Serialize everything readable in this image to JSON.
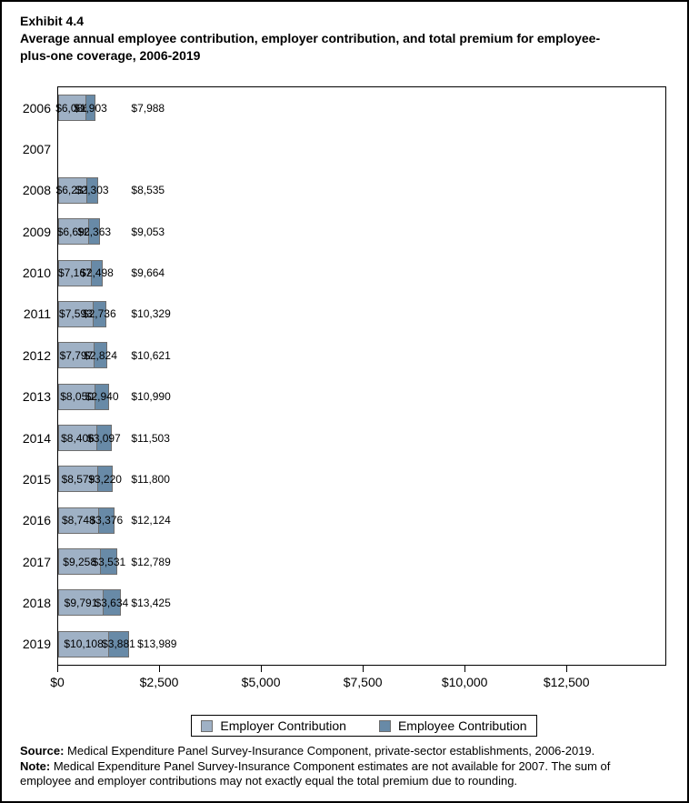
{
  "header": {
    "exhibit": "Exhibit 4.4",
    "title": "Average annual employee contribution, employer contribution, and total premium for employee-plus-one coverage, 2006-2019"
  },
  "colors": {
    "employer": "#9fb1c5",
    "employee": "#688aa7",
    "bar_border": "#6e6e6e"
  },
  "chart_data": {
    "type": "bar",
    "subtype": "horizontal-stacked",
    "title": "Average annual employee contribution, employer contribution, and total premium for employee-plus-one coverage, 2006-2019",
    "categories": [
      "2006",
      "2007",
      "2008",
      "2009",
      "2010",
      "2011",
      "2012",
      "2013",
      "2014",
      "2015",
      "2016",
      "2017",
      "2018",
      "2019"
    ],
    "series": [
      {
        "name": "Employer Contribution",
        "color_key": "employer",
        "values": [
          6086,
          null,
          6231,
          6690,
          7167,
          7593,
          7797,
          8050,
          8406,
          8579,
          8748,
          9258,
          9791,
          10108
        ]
      },
      {
        "name": "Employee Contribution",
        "color_key": "employee",
        "values": [
          1903,
          null,
          2303,
          2363,
          2498,
          2736,
          2824,
          2940,
          3097,
          3220,
          3376,
          3531,
          3634,
          3881
        ]
      }
    ],
    "totals": [
      7988,
      null,
      8535,
      9053,
      9664,
      10329,
      10621,
      10990,
      11503,
      11800,
      12124,
      12789,
      13425,
      13989
    ],
    "missing_categories": [
      "2007"
    ],
    "xlim": [
      0,
      14950
    ],
    "xticks": [
      {
        "value": 0,
        "label": "$0"
      },
      {
        "value": 2500,
        "label": "$2,500"
      },
      {
        "value": 5000,
        "label": "$5,000"
      },
      {
        "value": 7500,
        "label": "$7,500"
      },
      {
        "value": 10000,
        "label": "$10,000"
      },
      {
        "value": 12500,
        "label": "$12,500"
      }
    ],
    "legend_position": "bottom",
    "grid": false
  },
  "legend": {
    "items": [
      {
        "label": "Employer Contribution",
        "color_key": "employer"
      },
      {
        "label": "Employee Contribution",
        "color_key": "employee"
      }
    ]
  },
  "footer": {
    "source_label": "Source:",
    "source_text": " Medical Expenditure Panel Survey-Insurance Component, private-sector establishments, 2006-2019.",
    "note_label": "Note:",
    "note_text": " Medical Expenditure Panel Survey-Insurance Component estimates are not available for 2007. The sum of employee and employer contributions may not exactly equal the total premium due to rounding."
  }
}
